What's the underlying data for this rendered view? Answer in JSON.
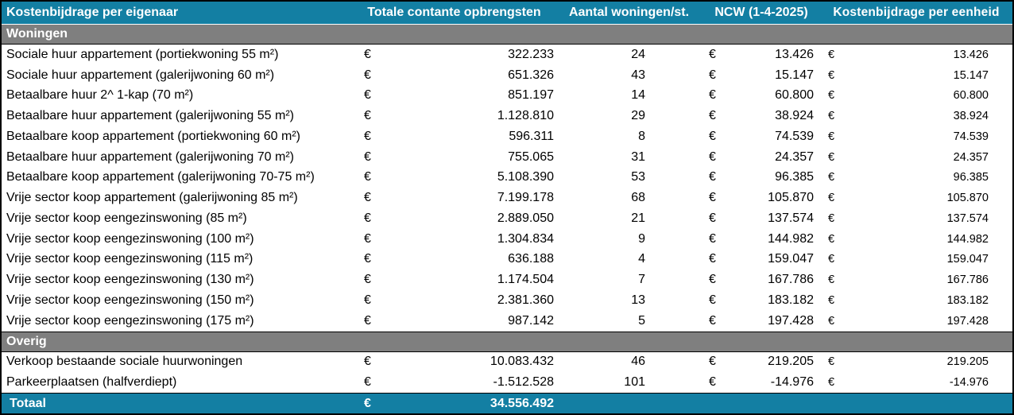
{
  "colors": {
    "accent": "#137fa3",
    "section_band": "#7f7f7f",
    "header_text": "#ffffff"
  },
  "table": {
    "currency_symbol": "€",
    "headers": {
      "col1": "Kostenbijdrage per eigenaar",
      "col2": "Totale contante opbrengsten",
      "col3": "Aantal woningen/st.",
      "col4": "NCW (1-4-2025)",
      "col5": "Kostenbijdrage per eenheid"
    },
    "sections": [
      {
        "label": "Woningen",
        "rows": [
          {
            "label": "Sociale huur appartement (portiekwoning 55 m²)",
            "totale_contante_opbrengsten": "322.233",
            "aantal": "24",
            "ncw": "13.426",
            "kostenbijdrage_per_eenheid": "13.426"
          },
          {
            "label": "Sociale huur appartement (galerijwoning 60 m²)",
            "totale_contante_opbrengsten": "651.326",
            "aantal": "43",
            "ncw": "15.147",
            "kostenbijdrage_per_eenheid": "15.147"
          },
          {
            "label": "Betaalbare huur 2^ 1-kap (70 m²)",
            "totale_contante_opbrengsten": "851.197",
            "aantal": "14",
            "ncw": "60.800",
            "kostenbijdrage_per_eenheid": "60.800"
          },
          {
            "label": "Betaalbare huur appartement (galerijwoning 55 m²)",
            "totale_contante_opbrengsten": "1.128.810",
            "aantal": "29",
            "ncw": "38.924",
            "kostenbijdrage_per_eenheid": "38.924"
          },
          {
            "label": "Betaalbare koop appartement (portiekwoning 60 m²)",
            "totale_contante_opbrengsten": "596.311",
            "aantal": "8",
            "ncw": "74.539",
            "kostenbijdrage_per_eenheid": "74.539"
          },
          {
            "label": "Betaalbare huur appartement (galerijwoning 70 m²)",
            "totale_contante_opbrengsten": "755.065",
            "aantal": "31",
            "ncw": "24.357",
            "kostenbijdrage_per_eenheid": "24.357"
          },
          {
            "label": "Betaalbare koop appartement (galerijwoning 70-75 m²)",
            "totale_contante_opbrengsten": "5.108.390",
            "aantal": "53",
            "ncw": "96.385",
            "kostenbijdrage_per_eenheid": "96.385"
          },
          {
            "label": "Vrije sector koop appartement (galerijwoning 85 m²)",
            "totale_contante_opbrengsten": "7.199.178",
            "aantal": "68",
            "ncw": "105.870",
            "kostenbijdrage_per_eenheid": "105.870"
          },
          {
            "label": "Vrije sector koop eengezinswoning (85 m²)",
            "totale_contante_opbrengsten": "2.889.050",
            "aantal": "21",
            "ncw": "137.574",
            "kostenbijdrage_per_eenheid": "137.574"
          },
          {
            "label": "Vrije sector koop eengezinswoning (100 m²)",
            "totale_contante_opbrengsten": "1.304.834",
            "aantal": "9",
            "ncw": "144.982",
            "kostenbijdrage_per_eenheid": "144.982"
          },
          {
            "label": "Vrije sector koop eengezinswoning (115 m²)",
            "totale_contante_opbrengsten": "636.188",
            "aantal": "4",
            "ncw": "159.047",
            "kostenbijdrage_per_eenheid": "159.047"
          },
          {
            "label": "Vrije sector koop eengezinswoning (130 m²)",
            "totale_contante_opbrengsten": "1.174.504",
            "aantal": "7",
            "ncw": "167.786",
            "kostenbijdrage_per_eenheid": "167.786"
          },
          {
            "label": "Vrije sector koop eengezinswoning (150 m²)",
            "totale_contante_opbrengsten": "2.381.360",
            "aantal": "13",
            "ncw": "183.182",
            "kostenbijdrage_per_eenheid": "183.182"
          },
          {
            "label": "Vrije sector koop eengezinswoning (175 m²)",
            "totale_contante_opbrengsten": "987.142",
            "aantal": "5",
            "ncw": "197.428",
            "kostenbijdrage_per_eenheid": "197.428"
          }
        ]
      },
      {
        "label": "Overig",
        "rows": [
          {
            "label": "Verkoop bestaande sociale huurwoningen",
            "totale_contante_opbrengsten": "10.083.432",
            "aantal": "46",
            "ncw": "219.205",
            "kostenbijdrage_per_eenheid": "219.205"
          },
          {
            "label": "Parkeerplaatsen (halfverdiept)",
            "totale_contante_opbrengsten": "-1.512.528",
            "aantal": "101",
            "ncw": "-14.976",
            "kostenbijdrage_per_eenheid": "-14.976"
          }
        ]
      }
    ],
    "total": {
      "label": "Totaal",
      "totale_contante_opbrengsten": "34.556.492"
    }
  },
  "chart_data": {
    "type": "table",
    "title": "Kostenbijdrage per eigenaar",
    "columns": [
      "Kostenbijdrage per eigenaar",
      "Totale contante opbrengsten (€)",
      "Aantal woningen/st.",
      "NCW (1-4-2025) (€)",
      "Kostenbijdrage per eenheid (€)"
    ],
    "rows": [
      [
        "Woningen",
        null,
        null,
        null,
        null
      ],
      [
        "Sociale huur appartement (portiekwoning 55 m²)",
        322233,
        24,
        13426,
        13426
      ],
      [
        "Sociale huur appartement (galerijwoning 60 m²)",
        651326,
        43,
        15147,
        15147
      ],
      [
        "Betaalbare huur 2^ 1-kap (70 m²)",
        851197,
        14,
        60800,
        60800
      ],
      [
        "Betaalbare huur appartement (galerijwoning 55 m²)",
        1128810,
        29,
        38924,
        38924
      ],
      [
        "Betaalbare koop appartement (portiekwoning 60 m²)",
        596311,
        8,
        74539,
        74539
      ],
      [
        "Betaalbare huur appartement (galerijwoning 70 m²)",
        755065,
        31,
        24357,
        24357
      ],
      [
        "Betaalbare koop appartement (galerijwoning 70-75 m²)",
        5108390,
        53,
        96385,
        96385
      ],
      [
        "Vrije sector koop appartement (galerijwoning 85 m²)",
        7199178,
        68,
        105870,
        105870
      ],
      [
        "Vrije sector koop eengezinswoning (85 m²)",
        2889050,
        21,
        137574,
        137574
      ],
      [
        "Vrije sector koop eengezinswoning (100 m²)",
        1304834,
        9,
        144982,
        144982
      ],
      [
        "Vrije sector koop eengezinswoning (115 m²)",
        636188,
        4,
        159047,
        159047
      ],
      [
        "Vrije sector koop eengezinswoning (130 m²)",
        1174504,
        7,
        167786,
        167786
      ],
      [
        "Vrije sector koop eengezinswoning (150 m²)",
        2381360,
        13,
        183182,
        183182
      ],
      [
        "Vrije sector koop eengezinswoning (175 m²)",
        987142,
        5,
        197428,
        197428
      ],
      [
        "Overig",
        null,
        null,
        null,
        null
      ],
      [
        "Verkoop bestaande sociale huurwoningen",
        10083432,
        46,
        219205,
        219205
      ],
      [
        "Parkeerplaatsen (halfverdiept)",
        -1512528,
        101,
        -14976,
        -14976
      ],
      [
        "Totaal",
        34556492,
        null,
        null,
        null
      ]
    ]
  }
}
